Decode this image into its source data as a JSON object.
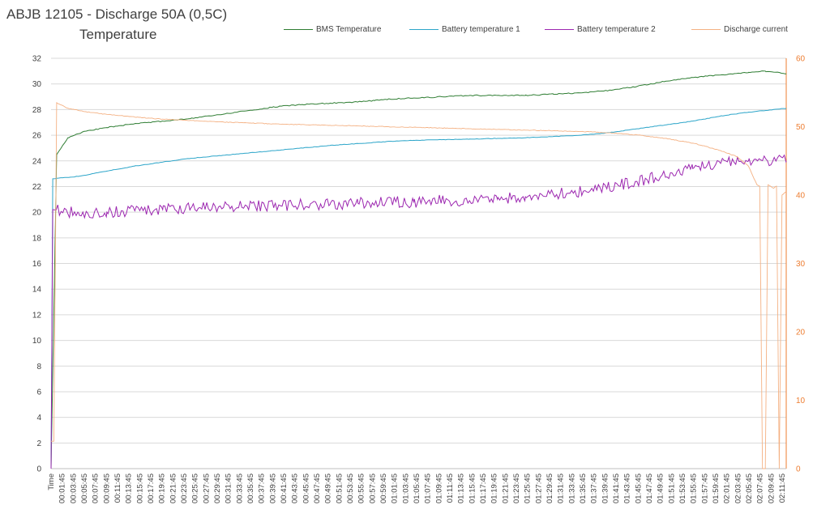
{
  "title_line1": "ABJB 12105 - Discharge 50A (0,5C)",
  "title_line2": "Temperature",
  "colors": {
    "bms": "#2e7d32",
    "batt1": "#2ca5c9",
    "batt2": "#9c27b0",
    "current": "#f4b183",
    "grid": "#d9d9d9",
    "axis_text_left": "#404040",
    "axis_text_right": "#ed7d31"
  },
  "chart_data": {
    "type": "line",
    "x_unit": "time hh:mm:ss",
    "x_first_label": "Time",
    "x_tick_labels": [
      "Time",
      "00:01:45",
      "00:03:45",
      "00:05:45",
      "00:07:45",
      "00:09:45",
      "00:11:45",
      "00:13:45",
      "00:15:45",
      "00:17:45",
      "00:19:45",
      "00:21:45",
      "00:23:45",
      "00:25:45",
      "00:27:45",
      "00:29:45",
      "00:31:45",
      "00:33:45",
      "00:35:45",
      "00:37:45",
      "00:39:45",
      "00:41:45",
      "00:43:45",
      "00:45:45",
      "00:47:45",
      "00:49:45",
      "00:51:45",
      "00:53:45",
      "00:55:45",
      "00:57:45",
      "00:59:45",
      "01:01:45",
      "01:03:45",
      "01:05:45",
      "01:07:45",
      "01:09:45",
      "01:11:45",
      "01:13:45",
      "01:15:45",
      "01:17:45",
      "01:19:45",
      "01:21:45",
      "01:23:45",
      "01:25:45",
      "01:27:45",
      "01:29:45",
      "01:31:45",
      "01:33:45",
      "01:35:45",
      "01:37:45",
      "01:39:45",
      "01:41:45",
      "01:43:45",
      "01:45:45",
      "01:47:45",
      "01:49:45",
      "01:51:45",
      "01:53:45",
      "01:55:45",
      "01:57:45",
      "01:59:45",
      "02:01:45",
      "02:03:45",
      "02:05:45",
      "02:07:45",
      "02:09:45",
      "02:11:45"
    ],
    "x_minutes_range": [
      0,
      131.75
    ],
    "y_left": {
      "min": 0,
      "max": 32,
      "step": 2,
      "ticks": [
        "0",
        "2",
        "4",
        "6",
        "8",
        "10",
        "12",
        "14",
        "16",
        "18",
        "20",
        "22",
        "24",
        "26",
        "28",
        "30",
        "32"
      ]
    },
    "y_right": {
      "min": 0,
      "max": 60,
      "step": 10,
      "ticks": [
        "0",
        "10",
        "20",
        "30",
        "40",
        "50",
        "60"
      ]
    },
    "grid": true,
    "legend_position": "top",
    "series": [
      {
        "name": "BMS Temperature",
        "axis": "left",
        "x_minutes": [
          0,
          1,
          3,
          6,
          10,
          15,
          20,
          25,
          30,
          35,
          40,
          45,
          50,
          55,
          58,
          60,
          65,
          70,
          75,
          80,
          85,
          90,
          95,
          100,
          105,
          110,
          115,
          120,
          125,
          128,
          131.75
        ],
        "values": [
          0,
          24.5,
          25.8,
          26.3,
          26.6,
          26.9,
          27.1,
          27.3,
          27.6,
          27.9,
          28.2,
          28.4,
          28.5,
          28.6,
          28.7,
          28.8,
          28.9,
          29.0,
          29.1,
          29.1,
          29.1,
          29.2,
          29.3,
          29.5,
          29.8,
          30.2,
          30.5,
          30.7,
          30.9,
          31.0,
          30.8
        ]
      },
      {
        "name": "Battery temperature 1",
        "axis": "left",
        "x_minutes": [
          0,
          0.3,
          5,
          10,
          15,
          20,
          25,
          30,
          35,
          40,
          45,
          50,
          55,
          60,
          65,
          70,
          75,
          80,
          85,
          90,
          95,
          100,
          105,
          110,
          115,
          120,
          125,
          131.75
        ],
        "values": [
          0,
          22.6,
          22.8,
          23.2,
          23.6,
          23.9,
          24.2,
          24.4,
          24.6,
          24.8,
          25.0,
          25.2,
          25.35,
          25.5,
          25.6,
          25.65,
          25.7,
          25.75,
          25.8,
          25.9,
          26.0,
          26.2,
          26.5,
          26.8,
          27.1,
          27.5,
          27.8,
          28.1
        ]
      },
      {
        "name": "Battery temperature 2",
        "axis": "left",
        "x_minutes": [
          0,
          0.3,
          5,
          10,
          15,
          20,
          25,
          30,
          35,
          40,
          45,
          50,
          55,
          60,
          65,
          70,
          75,
          80,
          85,
          90,
          95,
          100,
          105,
          110,
          115,
          120,
          125,
          131.75
        ],
        "values": [
          0,
          20.2,
          19.9,
          20.0,
          20.1,
          20.2,
          20.3,
          20.4,
          20.5,
          20.5,
          20.6,
          20.6,
          20.7,
          20.8,
          20.8,
          20.9,
          20.9,
          21.0,
          21.2,
          21.4,
          21.6,
          22.0,
          22.4,
          22.9,
          23.4,
          23.8,
          24.0,
          24.0
        ]
      },
      {
        "name": "Discharge current",
        "axis": "right",
        "x_minutes": [
          0,
          0.5,
          1,
          3,
          6,
          10,
          15,
          20,
          30,
          40,
          50,
          60,
          70,
          80,
          90,
          95,
          100,
          105,
          110,
          115,
          120,
          123,
          125,
          126.5,
          127,
          127.5,
          128,
          128.5,
          129.5,
          130,
          130.5,
          131,
          131.75
        ],
        "values": [
          4,
          4,
          53.5,
          52.7,
          52.2,
          51.8,
          51.4,
          51.1,
          50.7,
          50.4,
          50.2,
          50.0,
          49.8,
          49.6,
          49.4,
          49.3,
          49.1,
          48.8,
          48.3,
          47.6,
          46.5,
          45.6,
          44.2,
          41.5,
          41.3,
          0,
          0,
          41.5,
          41.0,
          41.3,
          0,
          40.0,
          40.5
        ]
      }
    ]
  }
}
